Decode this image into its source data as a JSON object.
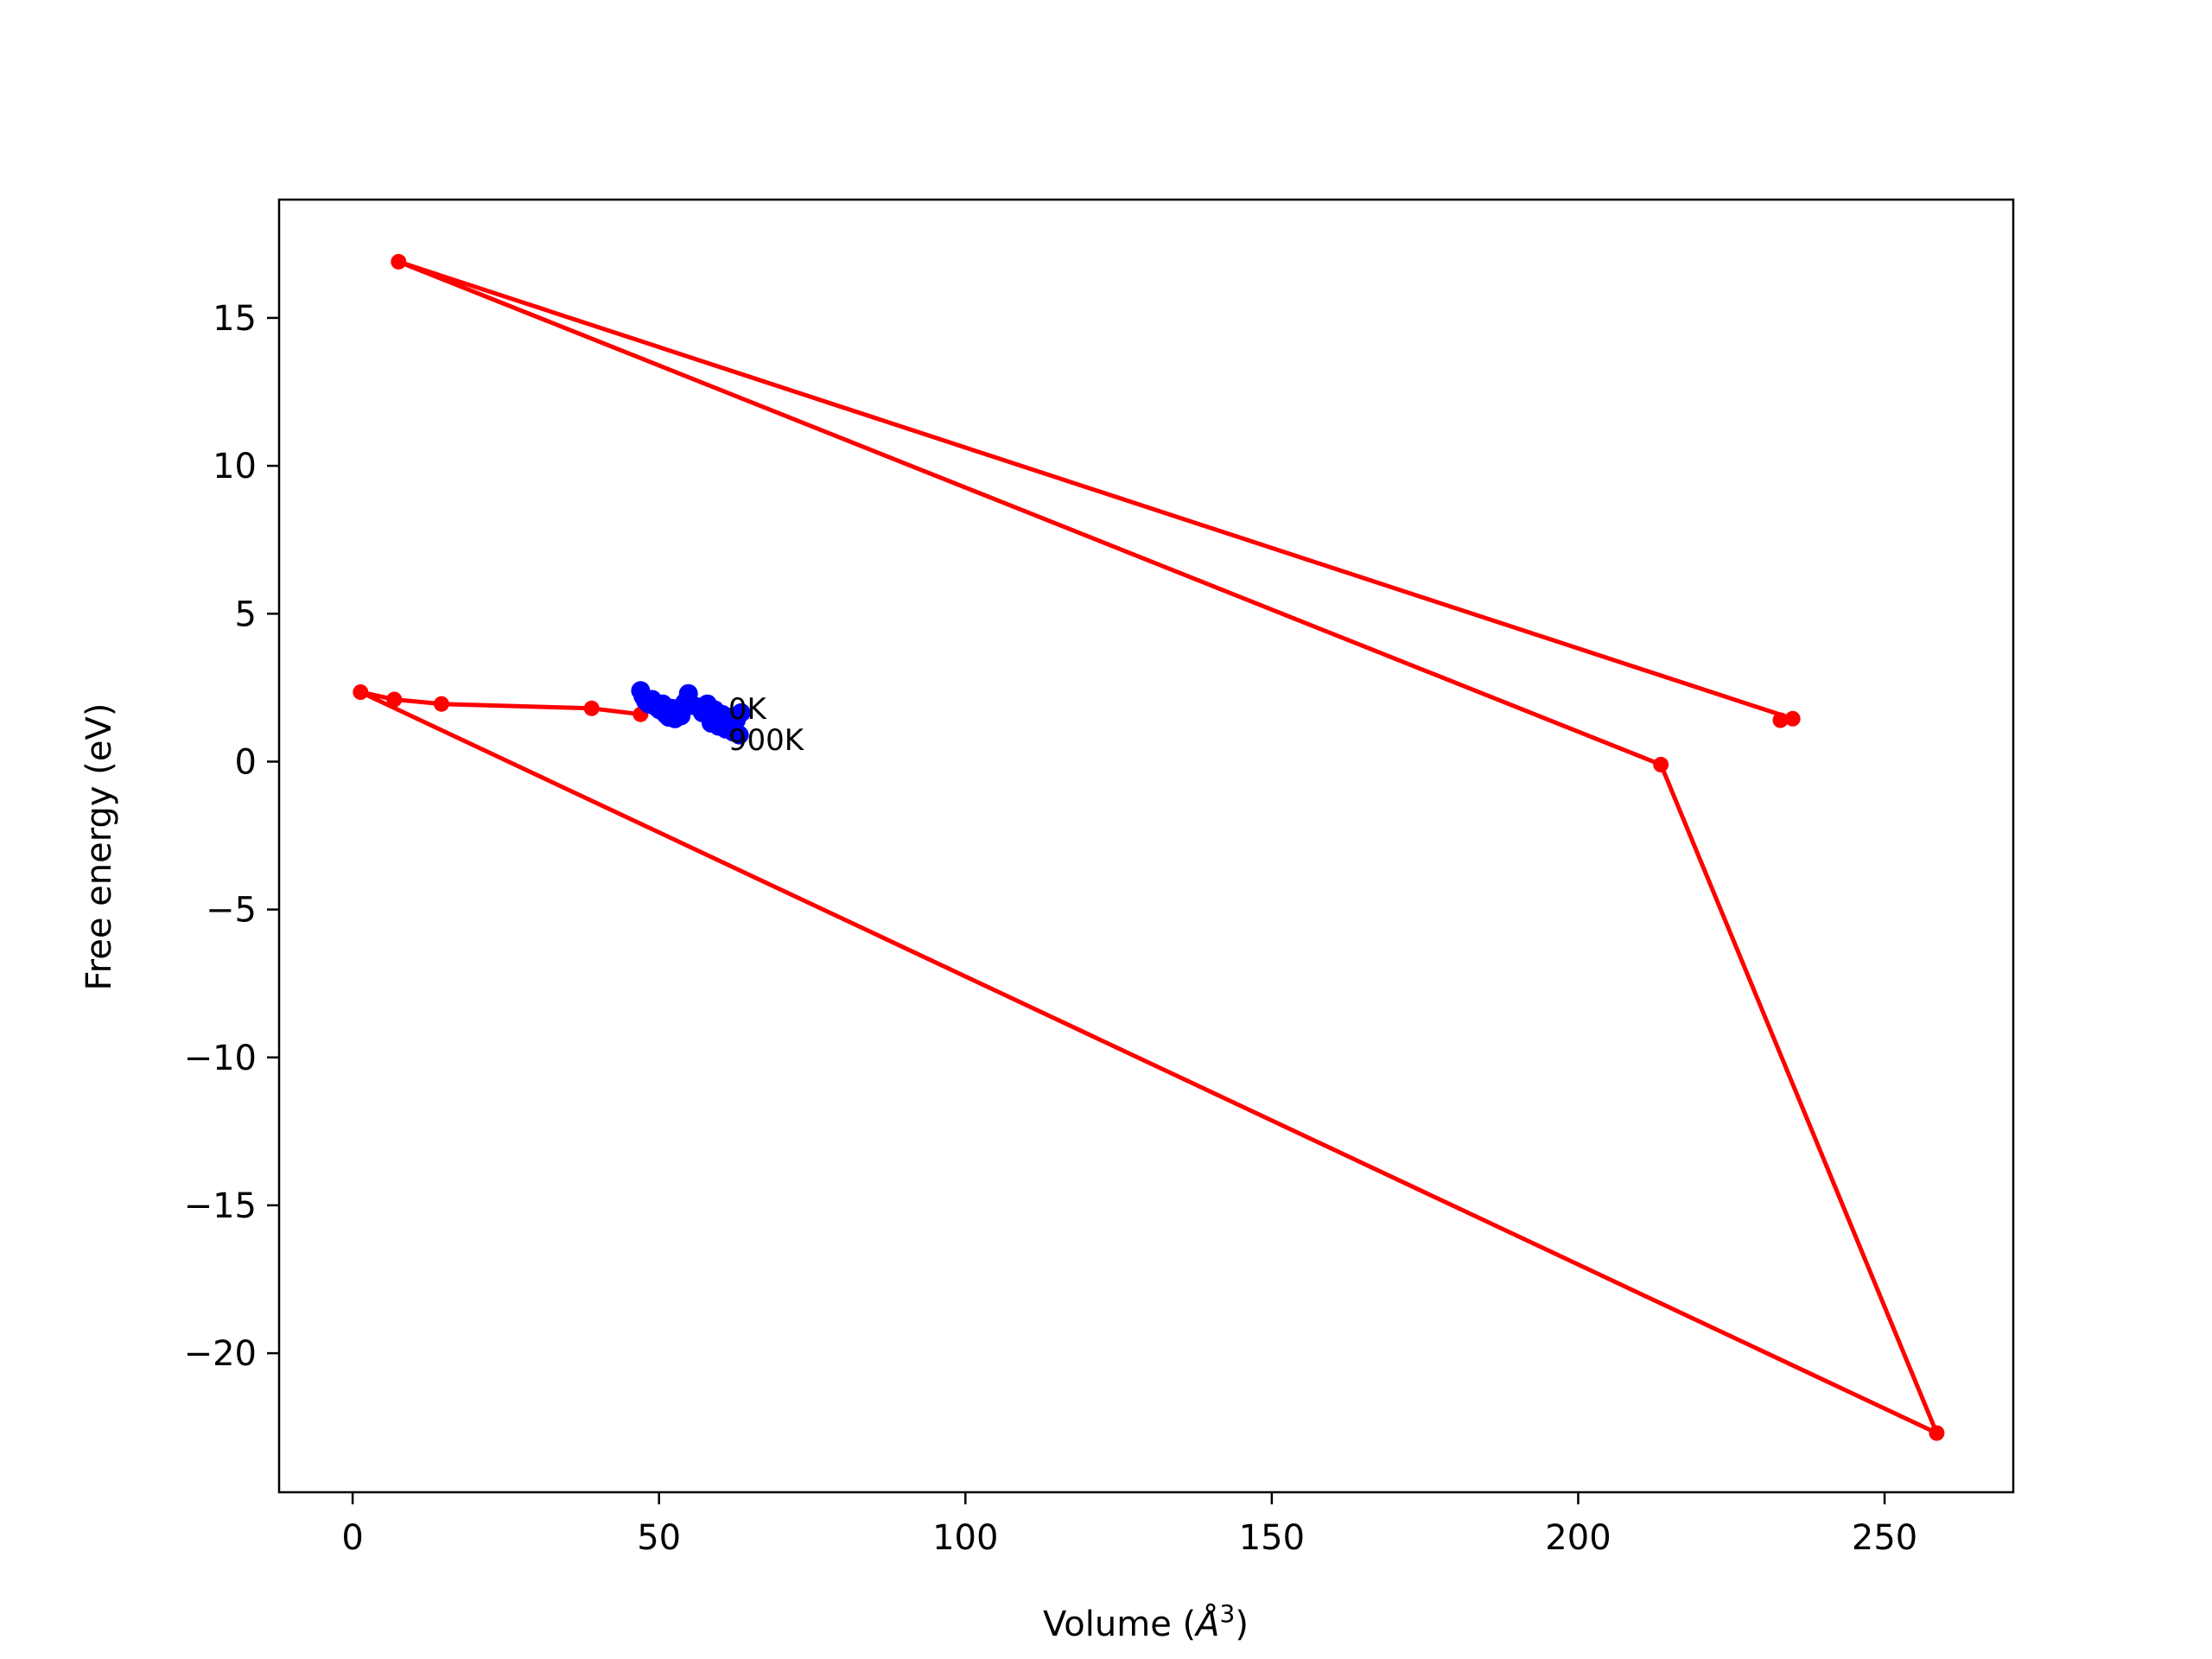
{
  "chart_data": {
    "type": "line",
    "title": "",
    "xlabel": "Volume (",
    "xlabel_symbol": "Å",
    "xlabel_sup": "3",
    "xlabel_end": ")",
    "ylabel": "Free energy (eV)",
    "xlim": [
      -12,
      271
    ],
    "ylim": [
      -24.7,
      19
    ],
    "grid": false,
    "legend": "none",
    "xticks": [
      {
        "value": 0,
        "label": "0"
      },
      {
        "value": 50,
        "label": "50"
      },
      {
        "value": 100,
        "label": "100"
      },
      {
        "value": 150,
        "label": "150"
      },
      {
        "value": 200,
        "label": "200"
      },
      {
        "value": 250,
        "label": "250"
      }
    ],
    "yticks": [
      {
        "value": 15,
        "label": "15"
      },
      {
        "value": 10,
        "label": "10"
      },
      {
        "value": 5,
        "label": "5"
      },
      {
        "value": 0,
        "label": "0"
      },
      {
        "value": -5,
        "label": "−5"
      },
      {
        "value": -10,
        "label": "−10"
      },
      {
        "value": -15,
        "label": "−15"
      },
      {
        "value": -20,
        "label": "−20"
      }
    ],
    "series": [
      {
        "color": "#ff0000",
        "style": "line-markers",
        "points": [
          [
            233,
            1.4
          ],
          [
            235,
            1.45
          ],
          [
            7.5,
            16.9
          ],
          [
            213.5,
            -0.1
          ],
          [
            258.5,
            -22.7
          ],
          [
            1.3,
            2.35
          ],
          [
            6.8,
            2.1
          ],
          [
            14.5,
            1.95
          ],
          [
            39,
            1.8
          ],
          [
            47,
            1.6
          ]
        ]
      },
      {
        "color": "#0000ff",
        "style": "markers",
        "points": [
          [
            47.0,
            2.4
          ],
          [
            47.4,
            2.2
          ],
          [
            47.8,
            2.05
          ],
          [
            48.3,
            1.95
          ],
          [
            48.9,
            2.1
          ],
          [
            49.5,
            1.85
          ],
          [
            50.1,
            1.75
          ],
          [
            50.6,
            1.95
          ],
          [
            51.1,
            1.6
          ],
          [
            51.6,
            1.5
          ],
          [
            52.1,
            1.8
          ],
          [
            52.6,
            1.45
          ],
          [
            53.1,
            1.7
          ],
          [
            53.6,
            1.55
          ],
          [
            54.2,
            2.0
          ],
          [
            54.8,
            2.3
          ],
          [
            55.5,
            1.9
          ],
          [
            56.3,
            1.85
          ],
          [
            57.1,
            1.65
          ],
          [
            57.9,
            1.95
          ],
          [
            58.5,
            1.3
          ],
          [
            59.1,
            1.75
          ],
          [
            59.7,
            1.2
          ],
          [
            60.3,
            1.6
          ],
          [
            60.9,
            1.1
          ],
          [
            61.5,
            1.5
          ],
          [
            62.1,
            1.0
          ],
          [
            62.6,
            1.4
          ],
          [
            63.1,
            0.9
          ],
          [
            63.4,
            1.65
          ]
        ]
      }
    ],
    "annotations": [
      {
        "text": "0K",
        "x": 61.3,
        "y": 1.8
      },
      {
        "text": "900K",
        "x": 61.3,
        "y": 0.75
      }
    ]
  }
}
